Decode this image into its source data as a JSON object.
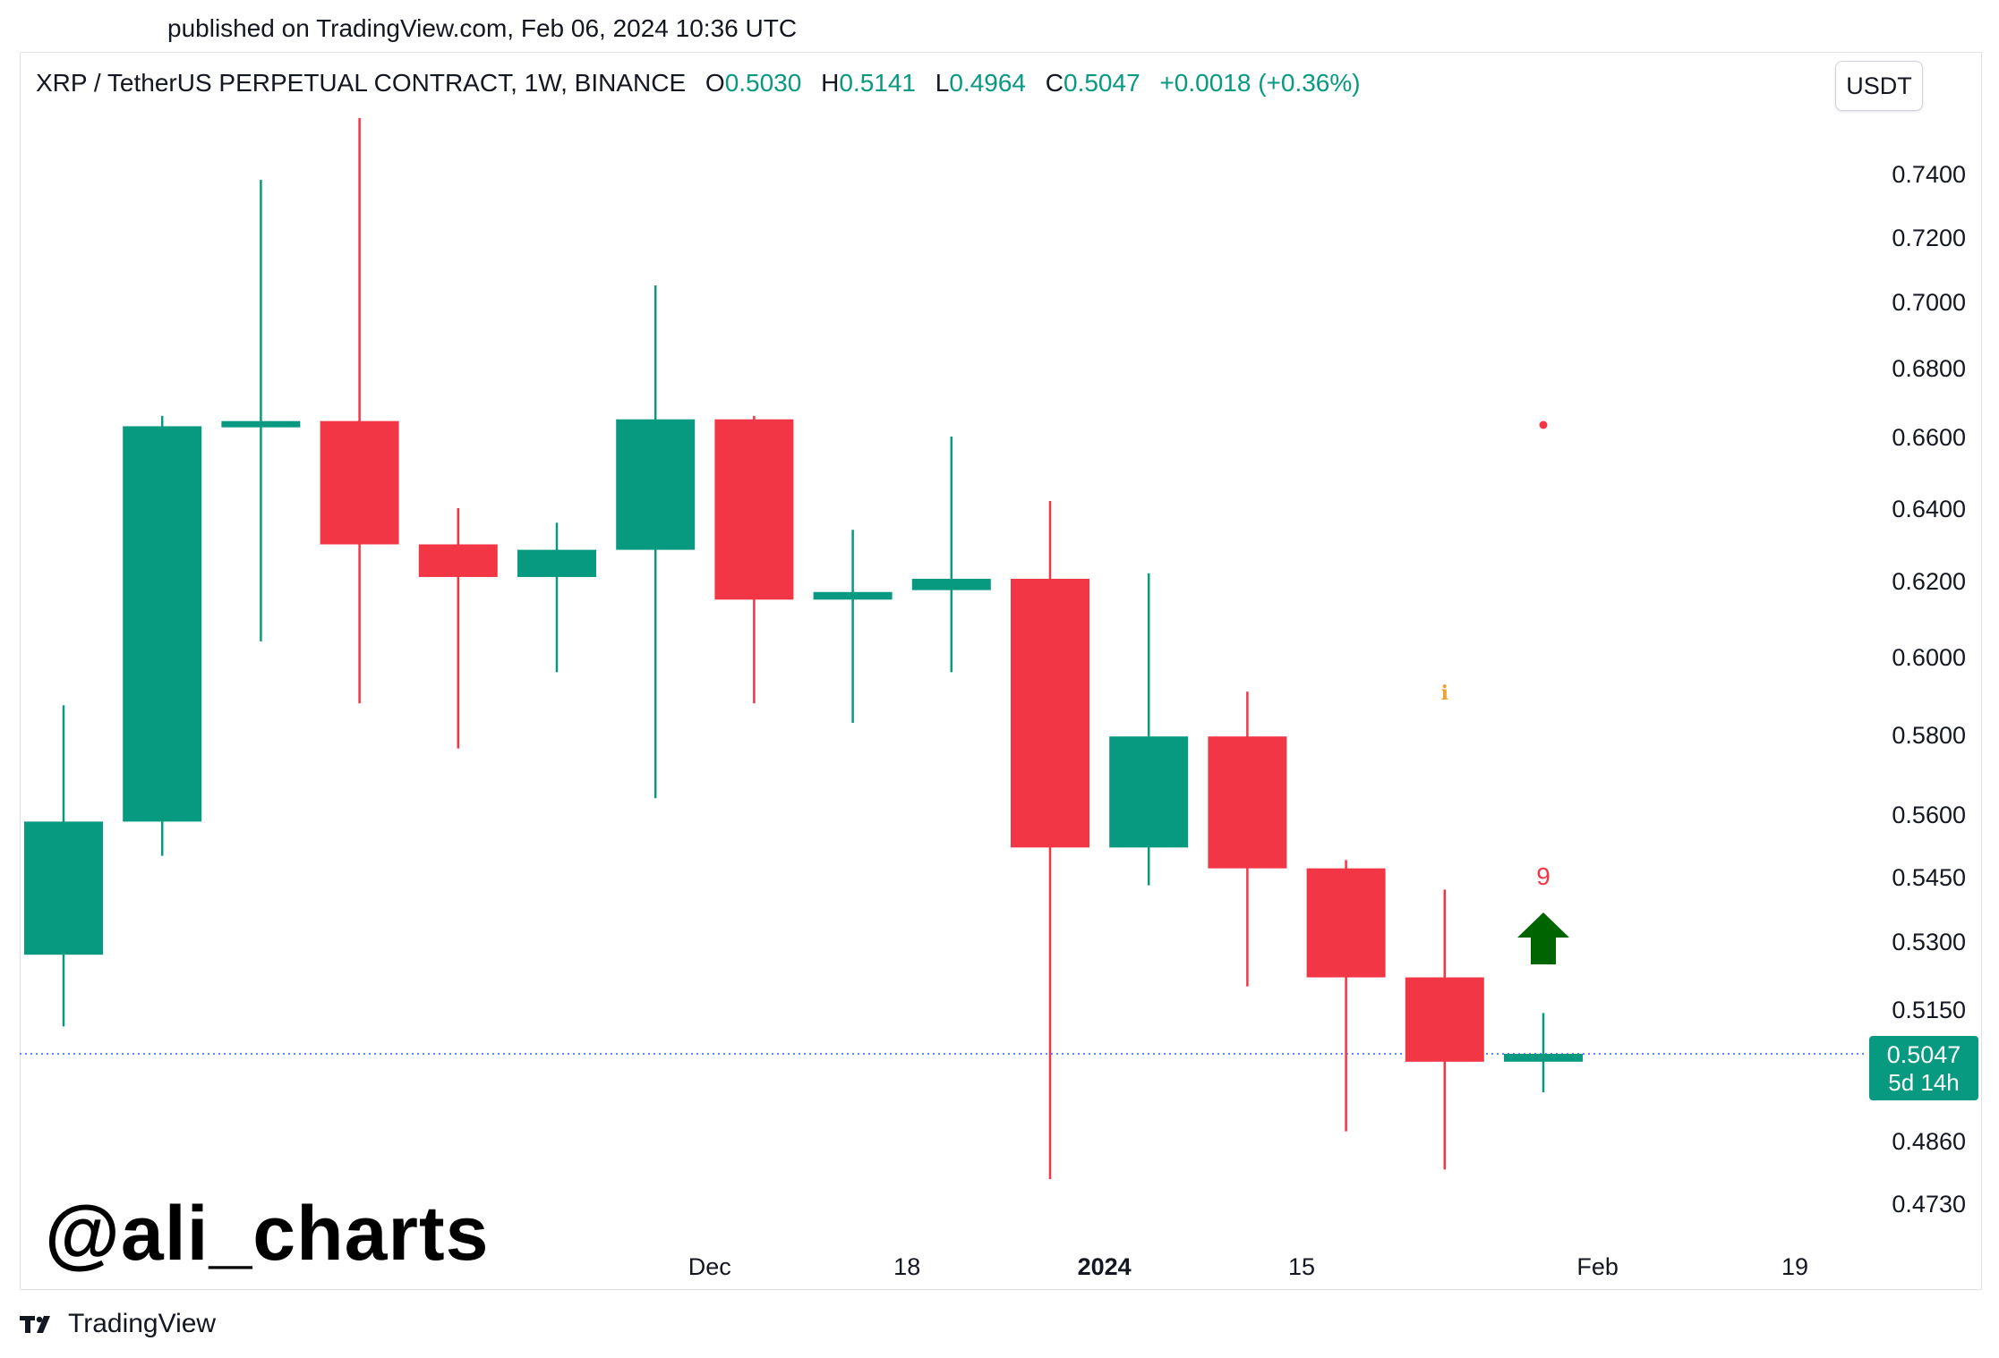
{
  "published": "published on TradingView.com, Feb 06, 2024 10:36 UTC",
  "legend": {
    "symbol": "XRP / TetherUS PERPETUAL CONTRACT, 1W, BINANCE",
    "o_label": "O",
    "o_value": "0.5030",
    "h_label": "H",
    "h_value": "0.5141",
    "l_label": "L",
    "l_value": "0.4964",
    "c_label": "C",
    "c_value": "0.5047",
    "change": "+0.0018 (+0.36%)"
  },
  "currency_button": "USDT",
  "watermark": "@ali_charts",
  "brand": {
    "name": "TradingView",
    "logo_icon": "tradingview-logo-icon"
  },
  "colors": {
    "up": "#089981",
    "down": "#f23645",
    "price_line": "#2962ff",
    "arrow": "#006400",
    "info": "#f0a030"
  },
  "chart_data": {
    "type": "candlestick",
    "x_ticks": [
      {
        "index": 6.55,
        "label": "Dec",
        "bold": false
      },
      {
        "index": 8.55,
        "label": "18",
        "bold": false
      },
      {
        "index": 10.55,
        "label": "2024",
        "bold": true
      },
      {
        "index": 12.55,
        "label": "15",
        "bold": false
      },
      {
        "index": 15.55,
        "label": "Feb",
        "bold": false
      },
      {
        "index": 17.55,
        "label": "19",
        "bold": false
      }
    ],
    "y_ticks": [
      "0.7400",
      "0.7200",
      "0.7000",
      "0.6800",
      "0.6600",
      "0.6400",
      "0.6200",
      "0.6000",
      "0.5800",
      "0.5600",
      "0.5450",
      "0.5300",
      "0.5150",
      "0.4860",
      "0.4730"
    ],
    "candles": [
      {
        "o": 0.527,
        "h": 0.5875,
        "l": 0.511,
        "c": 0.5582
      },
      {
        "o": 0.5582,
        "h": 0.666,
        "l": 0.55,
        "c": 0.663
      },
      {
        "o": 0.664,
        "h": 0.738,
        "l": 0.604,
        "c": 0.6645
      },
      {
        "o": 0.6645,
        "h": 0.758,
        "l": 0.588,
        "c": 0.63
      },
      {
        "o": 0.63,
        "h": 0.64,
        "l": 0.5765,
        "c": 0.621
      },
      {
        "o": 0.621,
        "h": 0.636,
        "l": 0.596,
        "c": 0.6285
      },
      {
        "o": 0.6285,
        "h": 0.705,
        "l": 0.564,
        "c": 0.665
      },
      {
        "o": 0.665,
        "h": 0.666,
        "l": 0.588,
        "c": 0.615
      },
      {
        "o": 0.615,
        "h": 0.634,
        "l": 0.583,
        "c": 0.617
      },
      {
        "o": 0.6175,
        "h": 0.66,
        "l": 0.596,
        "c": 0.6205
      },
      {
        "o": 0.6205,
        "h": 0.642,
        "l": 0.478,
        "c": 0.552
      },
      {
        "o": 0.552,
        "h": 0.622,
        "l": 0.543,
        "c": 0.5795
      },
      {
        "o": 0.5795,
        "h": 0.591,
        "l": 0.52,
        "c": 0.547
      },
      {
        "o": 0.547,
        "h": 0.549,
        "l": 0.488,
        "c": 0.522
      },
      {
        "o": 0.522,
        "h": 0.542,
        "l": 0.48,
        "c": 0.503
      },
      {
        "o": 0.503,
        "h": 0.5141,
        "l": 0.4964,
        "c": 0.5047
      }
    ],
    "last_price": {
      "value": "0.5047",
      "countdown": "5d 14h"
    },
    "annotations": [
      {
        "type": "dot",
        "index": 15,
        "label": "",
        "color": "#f23645"
      },
      {
        "type": "info",
        "index": 14,
        "label": "i",
        "color": "#f0a030"
      },
      {
        "type": "count",
        "index": 15,
        "label": "9",
        "color": "#f23645"
      },
      {
        "type": "arrow-up",
        "index": 15,
        "label": "",
        "color": "#006400"
      }
    ],
    "grid": false
  }
}
